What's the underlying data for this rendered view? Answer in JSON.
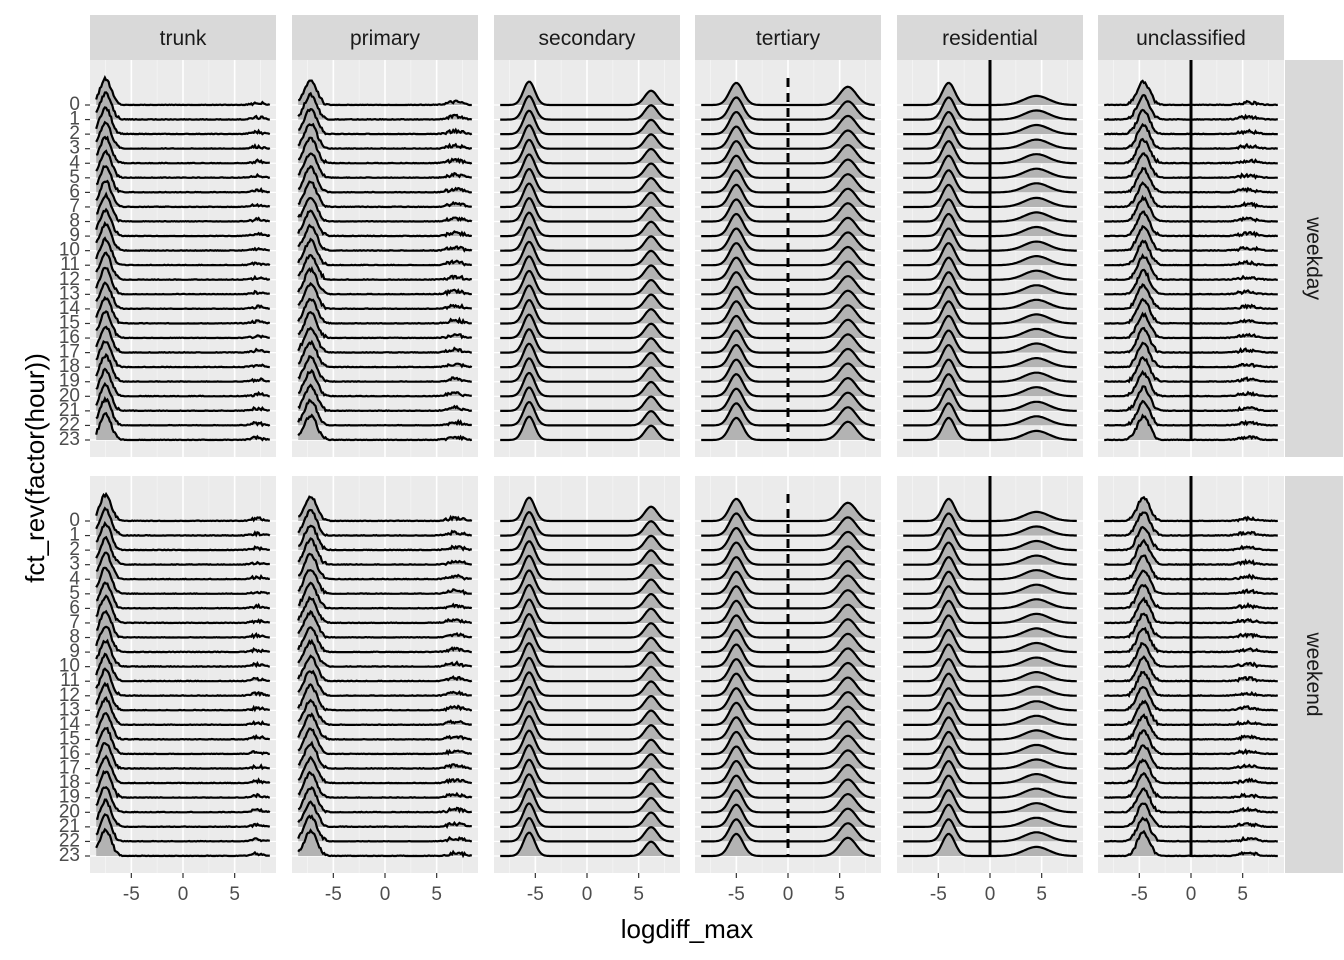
{
  "chart_data": {
    "type": "ridgeline",
    "xlabel": "logdiff_max",
    "ylabel": "fct_rev(factor(hour))",
    "xlim": [
      -9,
      9
    ],
    "x_ticks": [
      -5,
      0,
      5
    ],
    "x_tick_labels": [
      "-5",
      "0",
      "5"
    ],
    "columns": [
      "trunk",
      "primary",
      "secondary",
      "tertiary",
      "residential",
      "unclassified"
    ],
    "rows": [
      "weekday",
      "weekend"
    ],
    "hours": [
      "0",
      "1",
      "2",
      "3",
      "4",
      "5",
      "6",
      "7",
      "8",
      "9",
      "10",
      "11",
      "12",
      "13",
      "14",
      "15",
      "16",
      "17",
      "18",
      "19",
      "20",
      "21",
      "22",
      "23"
    ],
    "grid": true,
    "fill_color": "#b3b3b3",
    "line_color": "#000000",
    "panel_background": "#ebebeb",
    "strip_background": "#d9d9d9",
    "reference_lines": [
      {
        "column": "tertiary",
        "x": 0,
        "style": "dashed"
      },
      {
        "column": "residential",
        "x": 0,
        "style": "solid"
      },
      {
        "column": "unclassified",
        "x": 0,
        "style": "solid"
      }
    ],
    "peaks": {
      "trunk": {
        "left_x": -7.5,
        "left_height": 1.0,
        "left_width": 0.55,
        "right_x": 7.2,
        "right_height": 0.08,
        "right_width": 0.6
      },
      "primary": {
        "left_x": -7.2,
        "left_height": 0.95,
        "left_width": 0.6,
        "right_x": 6.8,
        "right_height": 0.12,
        "right_width": 0.7
      },
      "secondary": {
        "left_x": -5.6,
        "left_height": 0.9,
        "left_width": 0.55,
        "right_x": 6.2,
        "right_height": 0.55,
        "right_width": 0.6
      },
      "tertiary": {
        "left_x": -5.0,
        "left_height": 0.85,
        "left_width": 0.65,
        "right_x": 5.8,
        "right_height": 0.7,
        "right_width": 0.8
      },
      "residential": {
        "left_x": -4.0,
        "left_height": 0.85,
        "left_width": 0.6,
        "right_x": 4.5,
        "right_height": 0.35,
        "right_width": 1.2
      },
      "unclassified": {
        "left_x": -4.6,
        "left_height": 0.9,
        "left_width": 0.6,
        "right_x": 5.5,
        "right_height": 0.1,
        "right_width": 0.8
      }
    }
  }
}
